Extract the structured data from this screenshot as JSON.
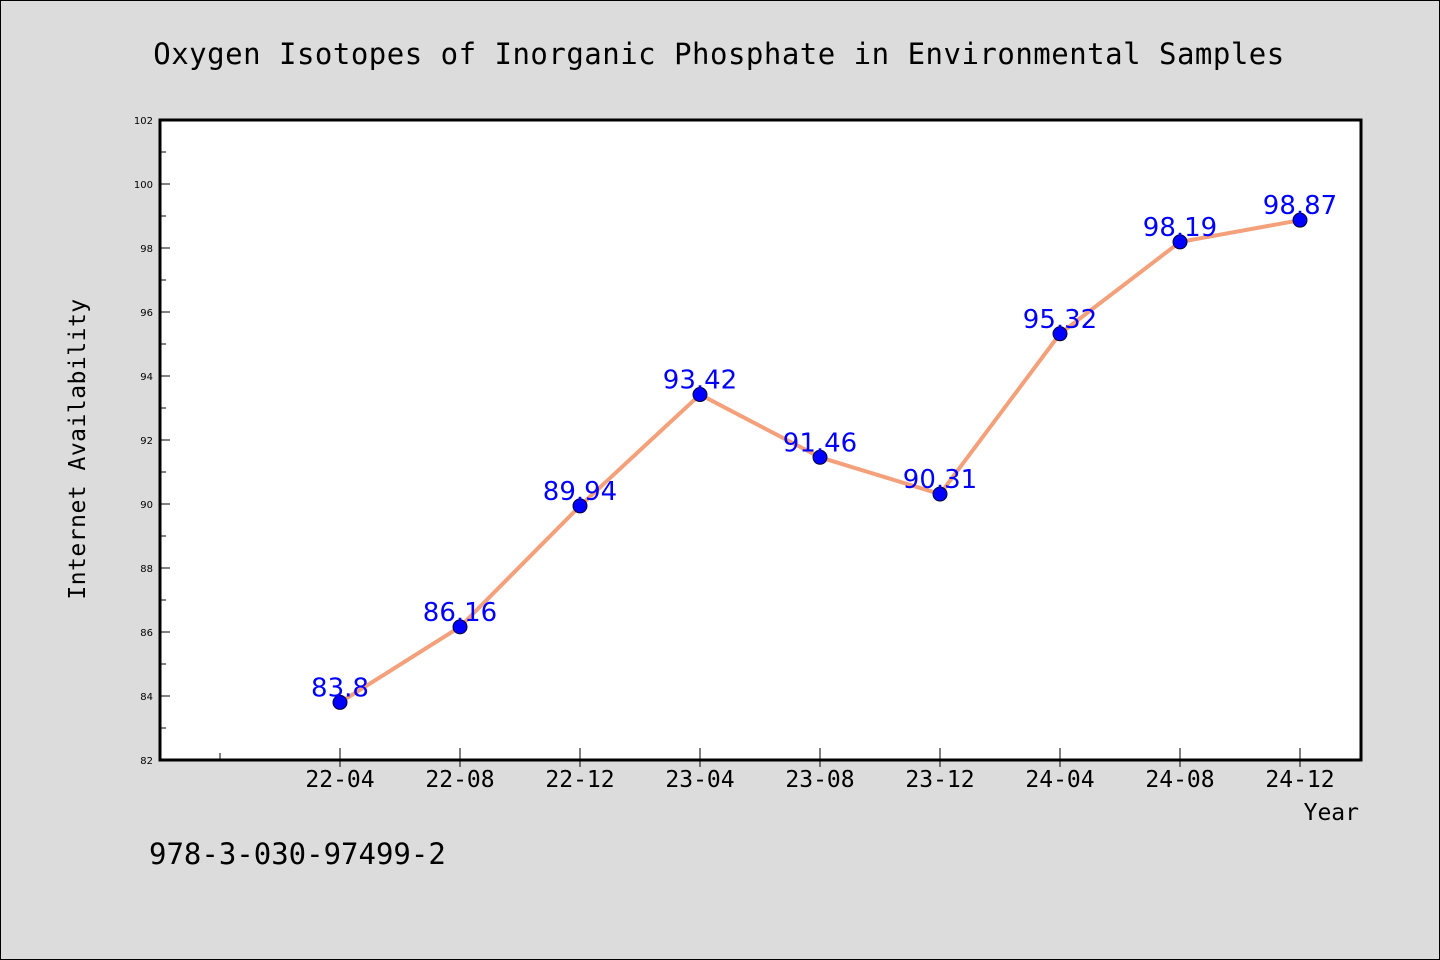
{
  "chart_data": {
    "type": "line",
    "title": "Oxygen Isotopes of Inorganic Phosphate in Environmental Samples",
    "xlabel": "Year",
    "ylabel": "Internet Availability",
    "categories": [
      "22-04",
      "22-08",
      "22-12",
      "23-04",
      "23-08",
      "23-12",
      "24-04",
      "24-08",
      "24-12"
    ],
    "series": [
      {
        "values": [
          83.8,
          86.16,
          89.94,
          93.42,
          91.46,
          90.31,
          95.32,
          98.19,
          98.87
        ]
      }
    ],
    "data_labels": [
      "83.8",
      "86.16",
      "89.94",
      "93.42",
      "91.46",
      "90.31",
      "95.32",
      "98.19",
      "98.87"
    ],
    "ylim": [
      82,
      102
    ],
    "yticks": [
      82,
      84,
      86,
      88,
      90,
      92,
      94,
      96,
      98,
      100,
      102
    ],
    "ytick_labels": [
      "82",
      "84",
      "86",
      "88",
      "90",
      "92",
      "94",
      "96",
      "98",
      "100",
      "102"
    ],
    "grid": false,
    "legend": "none",
    "colors": {
      "line": "#f4a07a",
      "marker": "#0000ff",
      "data_label": "#0000ff",
      "plot_background": "#ffffff",
      "figure_background": "#dcdcdc"
    }
  },
  "footnote": "978-3-030-97499-2"
}
